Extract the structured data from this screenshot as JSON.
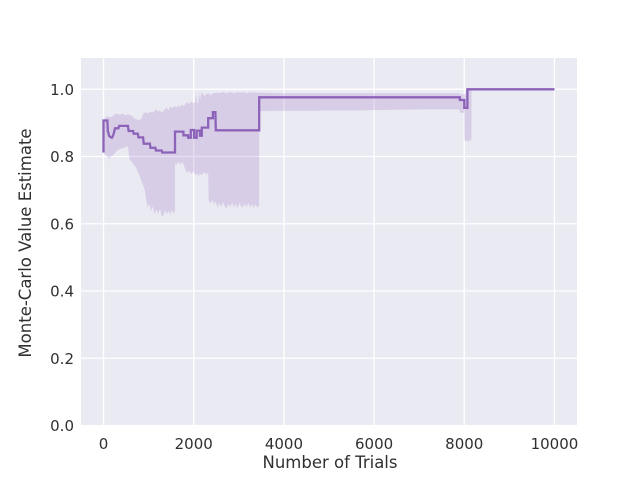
{
  "figure": {
    "background": "#ffffff",
    "plot_background": "#eaeaf2",
    "grid_color": "#ffffff",
    "text_color": "#303030"
  },
  "chart_data": {
    "type": "line",
    "title": "",
    "xlabel": "Number of Trials",
    "ylabel": "Monte-Carlo Value Estimate",
    "xlim": [
      -500,
      10500
    ],
    "ylim": [
      0,
      1.093
    ],
    "grid": true,
    "legend": "none",
    "xticks": [
      0,
      2000,
      4000,
      6000,
      8000,
      10000
    ],
    "xtick_labels": [
      "0",
      "2000",
      "4000",
      "6000",
      "8000",
      "10000"
    ],
    "yticks": [
      0.0,
      0.2,
      0.4,
      0.6,
      0.8,
      1.0
    ],
    "ytick_labels": [
      "0.0",
      "0.2",
      "0.4",
      "0.6",
      "0.8",
      "1.0"
    ],
    "line_color": "#8d63b9",
    "band_color": "#9467bd",
    "band_opacity": 0.22,
    "series": [
      {
        "name": "monte-carlo-value-estimate",
        "points": [
          [
            0,
            0.812
          ],
          [
            0,
            0.907
          ],
          [
            85,
            0.907
          ],
          [
            95,
            0.875
          ],
          [
            110,
            0.87
          ],
          [
            122,
            0.862
          ],
          [
            150,
            0.858
          ],
          [
            185,
            0.856
          ],
          [
            210,
            0.862
          ],
          [
            235,
            0.872
          ],
          [
            255,
            0.884
          ],
          [
            330,
            0.884
          ],
          [
            345,
            0.891
          ],
          [
            540,
            0.891
          ],
          [
            555,
            0.876
          ],
          [
            655,
            0.876
          ],
          [
            668,
            0.868
          ],
          [
            760,
            0.868
          ],
          [
            772,
            0.857
          ],
          [
            878,
            0.857
          ],
          [
            890,
            0.838
          ],
          [
            1028,
            0.838
          ],
          [
            1040,
            0.826
          ],
          [
            1150,
            0.826
          ],
          [
            1162,
            0.818
          ],
          [
            1290,
            0.818
          ],
          [
            1300,
            0.812
          ],
          [
            1585,
            0.812
          ],
          [
            1585,
            0.874
          ],
          [
            1770,
            0.874
          ],
          [
            1770,
            0.863
          ],
          [
            1878,
            0.863
          ],
          [
            1878,
            0.856
          ],
          [
            1935,
            0.856
          ],
          [
            1935,
            0.879
          ],
          [
            2008,
            0.879
          ],
          [
            2008,
            0.856
          ],
          [
            2065,
            0.856
          ],
          [
            2065,
            0.877
          ],
          [
            2140,
            0.877
          ],
          [
            2140,
            0.862
          ],
          [
            2180,
            0.862
          ],
          [
            2180,
            0.886
          ],
          [
            2321,
            0.886
          ],
          [
            2321,
            0.914
          ],
          [
            2425,
            0.914
          ],
          [
            2425,
            0.932
          ],
          [
            2480,
            0.932
          ],
          [
            2490,
            0.878
          ],
          [
            3451,
            0.878
          ],
          [
            3451,
            0.976
          ],
          [
            7900,
            0.976
          ],
          [
            7900,
            0.968
          ],
          [
            8000,
            0.968
          ],
          [
            8000,
            0.945
          ],
          [
            8070,
            0.945
          ],
          [
            8070,
            1.0
          ],
          [
            10000,
            1.0
          ]
        ]
      }
    ],
    "band": [
      [
        0,
        0.81,
        0.908
      ],
      [
        40,
        0.805,
        0.915
      ],
      [
        85,
        0.8,
        0.92
      ],
      [
        110,
        0.795,
        0.916
      ],
      [
        130,
        0.8,
        0.918
      ],
      [
        137,
        0.784,
        0.92
      ],
      [
        145,
        0.798,
        0.916
      ],
      [
        200,
        0.802,
        0.92
      ],
      [
        250,
        0.81,
        0.925
      ],
      [
        300,
        0.818,
        0.928
      ],
      [
        360,
        0.822,
        0.924
      ],
      [
        420,
        0.825,
        0.928
      ],
      [
        480,
        0.828,
        0.922
      ],
      [
        540,
        0.83,
        0.926
      ],
      [
        575,
        0.792,
        0.924
      ],
      [
        650,
        0.78,
        0.918
      ],
      [
        700,
        0.77,
        0.912
      ],
      [
        730,
        0.765,
        0.91
      ],
      [
        770,
        0.752,
        0.909
      ],
      [
        810,
        0.74,
        0.91
      ],
      [
        842,
        0.726,
        0.912
      ],
      [
        880,
        0.714,
        0.928
      ],
      [
        916,
        0.7,
        0.93
      ],
      [
        945,
        0.672,
        0.932
      ],
      [
        975,
        0.648,
        0.928
      ],
      [
        1010,
        0.66,
        0.93
      ],
      [
        1050,
        0.638,
        0.934
      ],
      [
        1090,
        0.652,
        0.93
      ],
      [
        1130,
        0.628,
        0.936
      ],
      [
        1170,
        0.642,
        0.94
      ],
      [
        1210,
        0.63,
        0.934
      ],
      [
        1250,
        0.644,
        0.938
      ],
      [
        1290,
        0.624,
        0.93
      ],
      [
        1320,
        0.622,
        0.934
      ],
      [
        1360,
        0.64,
        0.94
      ],
      [
        1400,
        0.628,
        0.945
      ],
      [
        1440,
        0.64,
        0.938
      ],
      [
        1475,
        0.625,
        0.948
      ],
      [
        1510,
        0.642,
        0.944
      ],
      [
        1549,
        0.63,
        0.948
      ],
      [
        1584,
        0.64,
        0.95
      ],
      [
        1585,
        0.78,
        0.95
      ],
      [
        1620,
        0.775,
        0.945
      ],
      [
        1660,
        0.786,
        0.952
      ],
      [
        1700,
        0.776,
        0.948
      ],
      [
        1740,
        0.784,
        0.955
      ],
      [
        1773,
        0.778,
        0.95
      ],
      [
        1810,
        0.762,
        0.955
      ],
      [
        1850,
        0.752,
        0.962
      ],
      [
        1895,
        0.758,
        0.956
      ],
      [
        1940,
        0.748,
        0.964
      ],
      [
        1985,
        0.756,
        0.958
      ],
      [
        2030,
        0.746,
        0.962
      ],
      [
        2056,
        0.745,
        0.995
      ],
      [
        2070,
        0.752,
        0.96
      ],
      [
        2100,
        0.742,
        0.96
      ],
      [
        2120,
        0.744,
        0.993
      ],
      [
        2140,
        0.75,
        0.966
      ],
      [
        2170,
        0.744,
        0.99
      ],
      [
        2200,
        0.748,
        0.988
      ],
      [
        2240,
        0.753,
        0.98
      ],
      [
        2280,
        0.747,
        0.986
      ],
      [
        2320,
        0.752,
        0.988
      ],
      [
        2331,
        0.67,
        0.988
      ],
      [
        2370,
        0.66,
        0.982
      ],
      [
        2410,
        0.67,
        0.986
      ],
      [
        2450,
        0.658,
        0.99
      ],
      [
        2490,
        0.666,
        0.988
      ],
      [
        2530,
        0.648,
        0.99
      ],
      [
        2570,
        0.662,
        0.988
      ],
      [
        2610,
        0.65,
        0.99
      ],
      [
        2650,
        0.664,
        0.992
      ],
      [
        2690,
        0.652,
        0.99
      ],
      [
        2730,
        0.645,
        0.988
      ],
      [
        2770,
        0.66,
        0.99
      ],
      [
        2810,
        0.65,
        0.992
      ],
      [
        2850,
        0.663,
        0.99
      ],
      [
        2890,
        0.648,
        0.988
      ],
      [
        2930,
        0.66,
        0.99
      ],
      [
        2970,
        0.646,
        0.992
      ],
      [
        3010,
        0.662,
        0.99
      ],
      [
        3050,
        0.652,
        0.99
      ],
      [
        3090,
        0.648,
        0.992
      ],
      [
        3130,
        0.66,
        0.99
      ],
      [
        3170,
        0.65,
        0.988
      ],
      [
        3210,
        0.662,
        0.99
      ],
      [
        3250,
        0.648,
        0.992
      ],
      [
        3290,
        0.658,
        0.99
      ],
      [
        3330,
        0.646,
        0.99
      ],
      [
        3370,
        0.658,
        0.992
      ],
      [
        3410,
        0.648,
        0.99
      ],
      [
        3450,
        0.655,
        0.99
      ],
      [
        3451,
        0.935,
        0.99
      ],
      [
        4000,
        0.936,
        0.988
      ],
      [
        4500,
        0.936,
        0.988
      ],
      [
        5000,
        0.937,
        0.988
      ],
      [
        5500,
        0.937,
        0.988
      ],
      [
        6000,
        0.938,
        0.988
      ],
      [
        6500,
        0.939,
        0.988
      ],
      [
        7000,
        0.94,
        0.988
      ],
      [
        7500,
        0.94,
        0.988
      ],
      [
        7899,
        0.94,
        0.988
      ],
      [
        7900,
        0.93,
        0.985
      ],
      [
        7999,
        0.93,
        0.985
      ],
      [
        8000,
        0.85,
        0.985
      ],
      [
        8035,
        0.845,
        0.985
      ],
      [
        8070,
        0.848,
        1.0
      ],
      [
        8100,
        0.843,
        1.0
      ],
      [
        8130,
        0.852,
        1.0
      ],
      [
        8160,
        0.845,
        1.0
      ],
      [
        8161,
        1.0,
        1.0
      ],
      [
        10000,
        1.0,
        1.0
      ]
    ]
  }
}
